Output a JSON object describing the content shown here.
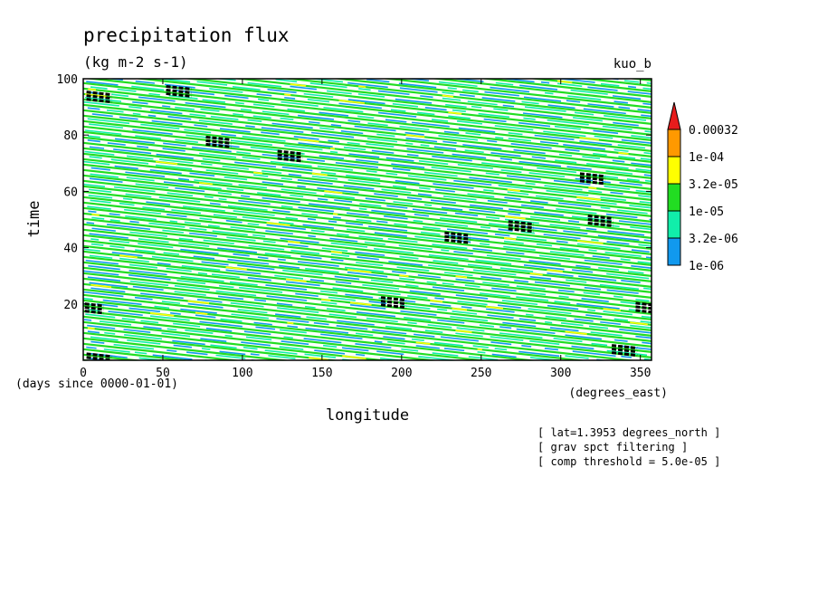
{
  "chart_data": {
    "type": "heatmap",
    "title": "precipitation flux",
    "subtitle": "(kg m-2 s-1)",
    "tag": "kuo_b",
    "xlabel": "longitude",
    "xunits": "(degrees_east)",
    "ylabel": "time",
    "yunits": "(days since 0000-01-01)",
    "xlim": [
      0,
      357
    ],
    "ylim": [
      0,
      100
    ],
    "xticks": [
      0,
      50,
      100,
      150,
      200,
      250,
      300,
      350
    ],
    "yticks": [
      20,
      40,
      60,
      80,
      100
    ],
    "colorbar": {
      "labels": [
        "0.00032",
        "1e-04",
        "3.2e-05",
        "1e-05",
        "3.2e-06",
        "1e-06"
      ],
      "colors": [
        "#e81c1c",
        "#ff9900",
        "#ffff00",
        "#22dd22",
        "#11eeaa",
        "#1199ee"
      ]
    },
    "notes": [
      "[ lat=1.3953 degrees_north ]",
      "[ grav spct filtering ]",
      "[ comp threshold = 5.0e-05 ]"
    ],
    "pattern": "westward-propagating precipitation bands (diagonal streaks) across all longitudes and times",
    "high_precip_patches": [
      {
        "lon": 10,
        "time": 94
      },
      {
        "lon": 60,
        "time": 96
      },
      {
        "lon": 85,
        "time": 78
      },
      {
        "lon": 130,
        "time": 73
      },
      {
        "lon": 235,
        "time": 44
      },
      {
        "lon": 275,
        "time": 48
      },
      {
        "lon": 320,
        "time": 65
      },
      {
        "lon": 325,
        "time": 50
      },
      {
        "lon": 195,
        "time": 21
      },
      {
        "lon": 5,
        "time": 19
      },
      {
        "lon": 355,
        "time": 19
      },
      {
        "lon": 340,
        "time": 4
      },
      {
        "lon": 10,
        "time": 1
      }
    ]
  }
}
